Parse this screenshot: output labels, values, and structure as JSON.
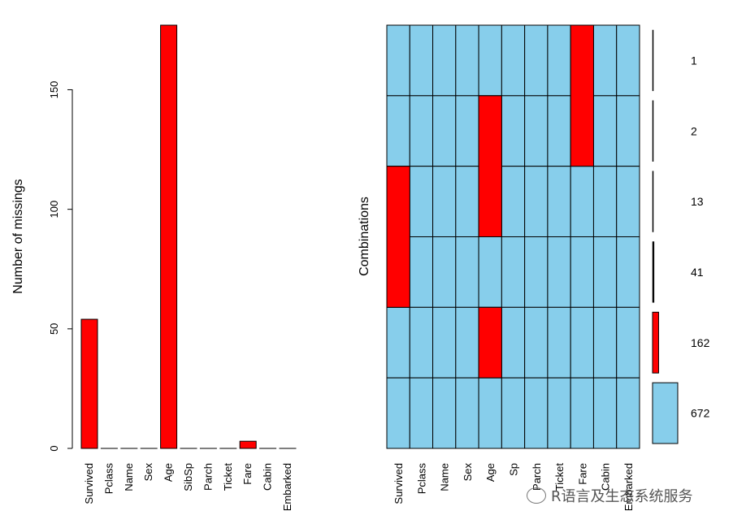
{
  "chart_data": [
    {
      "type": "bar",
      "ylabel": "Number of missings",
      "categories": [
        "Survived",
        "Pclass",
        "Name",
        "Sex",
        "Age",
        "SibSp",
        "Parch",
        "Ticket",
        "Fare",
        "Cabin",
        "Embarked"
      ],
      "values": [
        54,
        0,
        0,
        0,
        177,
        0,
        0,
        0,
        3,
        0,
        0
      ],
      "yticks": [
        "0",
        "50",
        "100",
        "150"
      ],
      "ylim": [
        0,
        177
      ],
      "bar_color": "#ff0000"
    },
    {
      "type": "heatmap",
      "ylabel": "Combinations",
      "columns": [
        "Survived",
        "Pclass",
        "Name",
        "Sex",
        "Age",
        "Sp",
        "Parch",
        "Ticket",
        "Fare",
        "Cabin",
        "Embarked"
      ],
      "rows": [
        {
          "count": "1",
          "missing": [
            "Fare"
          ]
        },
        {
          "count": "2",
          "missing": [
            "Age",
            "Fare"
          ]
        },
        {
          "count": "13",
          "missing": [
            "Survived",
            "Age"
          ]
        },
        {
          "count": "41",
          "missing": [
            "Survived"
          ]
        },
        {
          "count": "162",
          "missing": [
            "Age"
          ]
        },
        {
          "count": "672",
          "missing": []
        }
      ],
      "missing_color": "#ff0000",
      "present_color": "#87ceeb"
    }
  ],
  "watermark": "R语言及生态系统服务"
}
